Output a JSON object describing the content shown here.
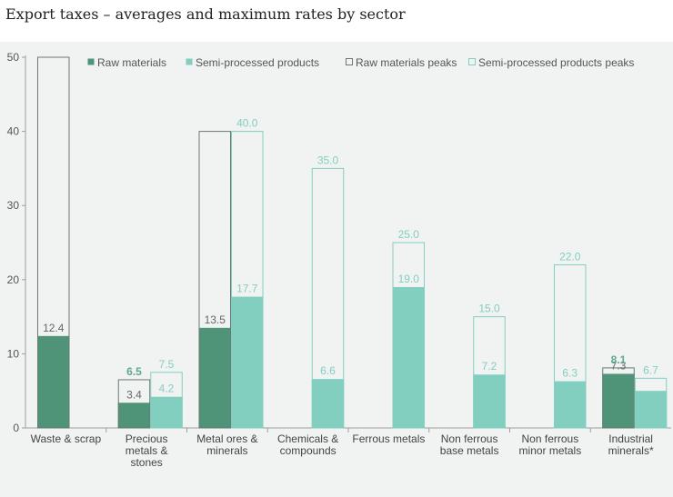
{
  "title": "Export taxes – averages and maximum rates by sector",
  "colors": {
    "raw": "#4f9479",
    "semi": "#82cfc0",
    "peak_raw_stroke": "#6a7a73",
    "peak_semi_stroke": "#82cfc0",
    "axis": "#9aa09e"
  },
  "chart_data": {
    "type": "bar",
    "ylim": [
      0,
      50
    ],
    "yticks": [
      0,
      10,
      20,
      30,
      40,
      50
    ],
    "categories": [
      [
        "Waste & scrap"
      ],
      [
        "Precious",
        "metals &",
        "stones"
      ],
      [
        "Metal ores &",
        "minerals"
      ],
      [
        "Chemicals &",
        "compounds"
      ],
      [
        "Ferrous metals"
      ],
      [
        "Non ferrous",
        "base metals"
      ],
      [
        "Non ferrous",
        "minor metals"
      ],
      [
        "Industrial",
        "minerals*"
      ]
    ],
    "series": [
      {
        "name": "Raw materials",
        "values": [
          12.4,
          3.4,
          13.5,
          null,
          null,
          null,
          null,
          7.3
        ],
        "labels": [
          "12.4",
          "3.4",
          "13.5",
          "",
          "",
          "",
          "",
          "7.3"
        ]
      },
      {
        "name": "Semi-processed products",
        "values": [
          null,
          4.2,
          17.7,
          6.6,
          19.0,
          7.2,
          6.3,
          5.0
        ],
        "labels": [
          "",
          "4.2",
          "17.7",
          "6.6",
          "19.0",
          "7.2",
          "6.3",
          ""
        ]
      },
      {
        "name": "Raw materials peaks",
        "values": [
          50,
          6.5,
          40,
          null,
          null,
          null,
          null,
          8.1
        ],
        "labels": [
          "",
          "6.5",
          "",
          "",
          "",
          "",
          "",
          "8.1"
        ]
      },
      {
        "name": "Semi-processed products peaks",
        "values": [
          null,
          7.5,
          40,
          35,
          25,
          15,
          22,
          6.7
        ],
        "labels": [
          "",
          "7.5",
          "40.0",
          "35.0",
          "25.0",
          "15.0",
          "22.0",
          "6.7"
        ]
      }
    ],
    "legend_position": "top"
  }
}
